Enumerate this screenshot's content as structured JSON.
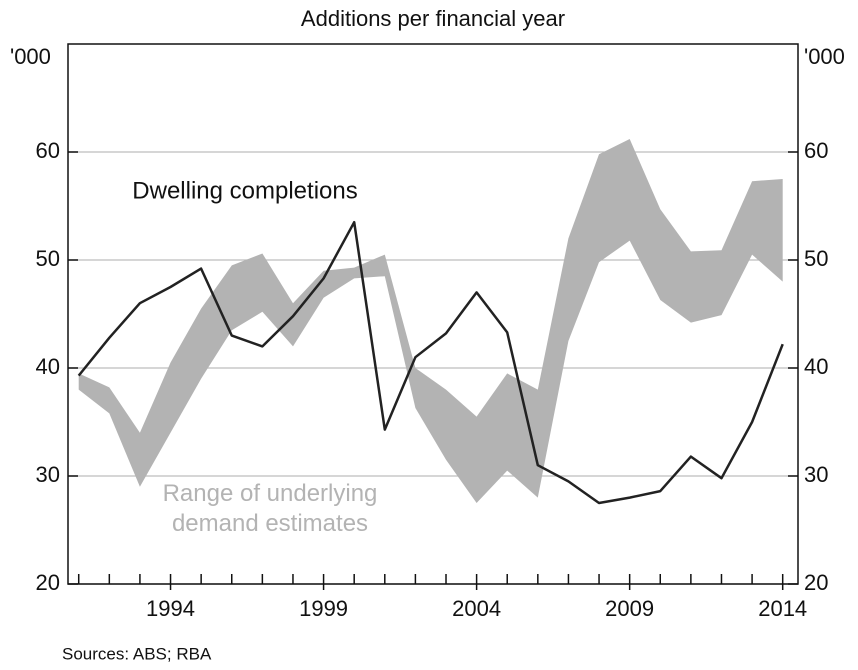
{
  "chart_data": {
    "type": "line",
    "title": "Additions per financial year",
    "y_unit": "'000",
    "source": "Sources:  ABS; RBA",
    "x": [
      1991,
      1992,
      1993,
      1994,
      1995,
      1996,
      1997,
      1998,
      1999,
      2000,
      2001,
      2002,
      2003,
      2004,
      2005,
      2006,
      2007,
      2008,
      2009,
      2010,
      2011,
      2012,
      2013,
      2014
    ],
    "xlim": [
      1990.65,
      2014.5
    ],
    "xticks": [
      1994,
      1999,
      2004,
      2009,
      2014
    ],
    "xminorticks": [
      1991,
      1992,
      1993,
      1994,
      1995,
      1996,
      1997,
      1998,
      1999,
      2000,
      2001,
      2002,
      2003,
      2004,
      2005,
      2006,
      2007,
      2008,
      2009,
      2010,
      2011,
      2012,
      2013,
      2014
    ],
    "ylim": [
      20,
      70
    ],
    "yticks": [
      20,
      30,
      40,
      50,
      60
    ],
    "y2lim": [
      20,
      70
    ],
    "y2ticks": [
      20,
      30,
      40,
      50,
      60
    ],
    "grid": true,
    "areas": [
      {
        "name": "Range of underlying demand estimates",
        "color": "#b3b3b3",
        "lower": [
          38,
          35.8,
          29,
          34,
          39,
          43.5,
          45.2,
          42,
          46.5,
          48.3,
          48.5,
          36.3,
          31.5,
          27.5,
          30.5,
          28,
          42.5,
          49.8,
          51.8,
          46.3,
          44.2,
          44.9,
          50.5,
          48
        ],
        "upper": [
          39.5,
          38.2,
          34,
          40.5,
          45.5,
          49.5,
          50.6,
          46,
          49,
          49.3,
          50.5,
          40,
          38,
          35.5,
          39.5,
          38,
          52,
          59.8,
          61.2,
          54.7,
          50.8,
          50.9,
          57.3,
          57.5
        ]
      }
    ],
    "series": [
      {
        "name": "Dwelling completions",
        "color": "#222222",
        "values": [
          39.3,
          42.8,
          46,
          47.5,
          49.2,
          43,
          42,
          44.8,
          48.3,
          53.5,
          34.3,
          41,
          43.2,
          47,
          43.3,
          31,
          29.5,
          27.5,
          28,
          28.6,
          31.8,
          29.8,
          35,
          42.2
        ]
      }
    ]
  }
}
